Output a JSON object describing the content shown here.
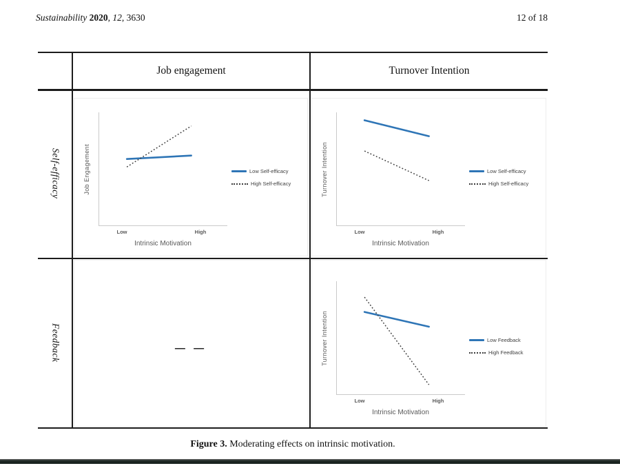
{
  "header": {
    "journal_italic": "Sustainability ",
    "year_bold": "2020",
    "sep": ", ",
    "volume_italic": "12",
    "tail": ", 3630",
    "page_indicator": "12 of 18"
  },
  "table": {
    "column_headers": [
      "Job engagement",
      "Turnover Intention"
    ],
    "row_headers": [
      "Self-efficacy",
      "Feedback"
    ],
    "empty_cell_placeholder": "— —"
  },
  "caption": {
    "label_bold": "Figure 3.",
    "text": " Moderating effects on intrinsic motivation."
  },
  "colors": {
    "accent_blue": "#2E75B6",
    "dotted_black": "#3A3A3A",
    "axis_gray": "#C9C9C9",
    "chart_text_gray": "#595959",
    "rule_black": "#1B1B1B"
  },
  "chart_data": [
    {
      "type": "line",
      "cell": "self-efficacy-x-job-engagement",
      "title": "",
      "xlabel": "Intrinsic Motivation",
      "ylabel": "Job Engagement",
      "x_ticks": [
        "Low",
        "High"
      ],
      "ylim": [
        0,
        1
      ],
      "grid": false,
      "legend_position": "right",
      "series": [
        {
          "name": "Low Self-efficacy",
          "style": "solid",
          "color": "#2E75B6",
          "values": [
            0.59,
            0.62
          ]
        },
        {
          "name": "High Self-efficacy",
          "style": "dotted",
          "color": "#3A3A3A",
          "values": [
            0.52,
            0.88
          ]
        }
      ]
    },
    {
      "type": "line",
      "cell": "self-efficacy-x-turnover-intention",
      "title": "",
      "xlabel": "Intrinsic Motivation",
      "ylabel": "Turnover Intention",
      "x_ticks": [
        "Low",
        "High"
      ],
      "ylim": [
        0,
        1
      ],
      "grid": false,
      "legend_position": "right",
      "series": [
        {
          "name": "Low Self-efficacy",
          "style": "solid",
          "color": "#2E75B6",
          "values": [
            0.93,
            0.79
          ]
        },
        {
          "name": "High Self-efficacy",
          "style": "dotted",
          "color": "#3A3A3A",
          "values": [
            0.66,
            0.4
          ]
        }
      ]
    },
    {
      "type": "line",
      "cell": "feedback-x-turnover-intention",
      "title": "",
      "xlabel": "Intrinsic Motivation",
      "ylabel": "Turnover Intention",
      "x_ticks": [
        "Low",
        "High"
      ],
      "ylim": [
        0,
        1
      ],
      "grid": false,
      "legend_position": "right",
      "series": [
        {
          "name": "Low Feedback",
          "style": "solid",
          "color": "#2E75B6",
          "values": [
            0.73,
            0.6
          ]
        },
        {
          "name": "High Feedback",
          "style": "dotted",
          "color": "#3A3A3A",
          "values": [
            0.86,
            0.09
          ]
        }
      ]
    }
  ]
}
